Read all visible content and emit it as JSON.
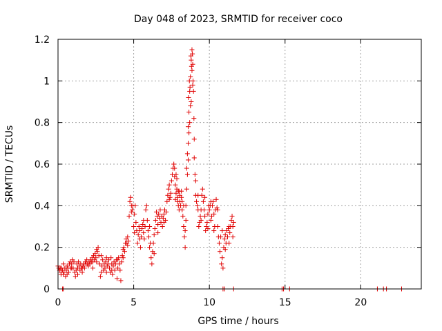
{
  "chart_data": {
    "type": "scatter",
    "title": "Day 048 of 2023, SRMTID for receiver coco",
    "xlabel": "GPS time / hours",
    "ylabel": "SRMTID / TECUs",
    "xlim": [
      0,
      24
    ],
    "ylim": [
      0,
      1.2
    ],
    "xticks": [
      0,
      5,
      10,
      15,
      20
    ],
    "xtick_labels": [
      "0",
      "5",
      "10",
      "15",
      "20"
    ],
    "yticks": [
      0,
      0.2,
      0.4,
      0.6,
      0.8,
      1.0,
      1.2
    ],
    "ytick_labels": [
      "0",
      "0.2",
      "0.4",
      "0.6",
      "0.8",
      "1",
      "1.2"
    ],
    "grid": true,
    "marker": "+",
    "color": "#e00000",
    "series": [
      {
        "name": "SRMTID",
        "points": [
          [
            0.0,
            0.11
          ],
          [
            0.05,
            0.1
          ],
          [
            0.1,
            0.09
          ],
          [
            0.15,
            0.1
          ],
          [
            0.2,
            0.08
          ],
          [
            0.25,
            0.1
          ],
          [
            0.3,
            0.09
          ],
          [
            0.35,
            0.07
          ],
          [
            0.4,
            0.08
          ],
          [
            0.45,
            0.1
          ],
          [
            0.5,
            0.06
          ],
          [
            0.55,
            0.09
          ],
          [
            0.6,
            0.11
          ],
          [
            0.65,
            0.1
          ],
          [
            0.7,
            0.08
          ],
          [
            0.75,
            0.12
          ],
          [
            0.8,
            0.13
          ],
          [
            0.85,
            0.1
          ],
          [
            0.9,
            0.12
          ],
          [
            0.95,
            0.14
          ],
          [
            1.0,
            0.1
          ],
          [
            1.05,
            0.13
          ],
          [
            1.1,
            0.08
          ],
          [
            1.15,
            0.06
          ],
          [
            1.2,
            0.09
          ],
          [
            1.25,
            0.12
          ],
          [
            1.3,
            0.1
          ],
          [
            1.35,
            0.13
          ],
          [
            1.4,
            0.11
          ],
          [
            1.45,
            0.09
          ],
          [
            1.5,
            0.12
          ],
          [
            1.55,
            0.1
          ],
          [
            1.6,
            0.08
          ],
          [
            1.65,
            0.11
          ],
          [
            1.7,
            0.12
          ],
          [
            1.75,
            0.1
          ],
          [
            1.8,
            0.13
          ],
          [
            1.85,
            0.12
          ],
          [
            1.9,
            0.14
          ],
          [
            1.95,
            0.12
          ],
          [
            2.0,
            0.11
          ],
          [
            2.05,
            0.13
          ],
          [
            2.1,
            0.12
          ],
          [
            2.15,
            0.14
          ],
          [
            2.2,
            0.13
          ],
          [
            2.25,
            0.15
          ],
          [
            2.3,
            0.13
          ],
          [
            2.35,
            0.16
          ],
          [
            2.4,
            0.14
          ],
          [
            2.45,
            0.17
          ],
          [
            2.5,
            0.15
          ],
          [
            2.55,
            0.13
          ],
          [
            2.6,
            0.18
          ],
          [
            2.65,
            0.2
          ],
          [
            2.7,
            0.16
          ],
          [
            2.75,
            0.12
          ],
          [
            2.8,
            0.06
          ],
          [
            2.85,
            0.08
          ],
          [
            2.9,
            0.11
          ],
          [
            2.95,
            0.14
          ],
          [
            3.0,
            0.09
          ],
          [
            3.05,
            0.12
          ],
          [
            3.1,
            0.1
          ],
          [
            3.15,
            0.13
          ],
          [
            3.2,
            0.08
          ],
          [
            3.25,
            0.11
          ],
          [
            3.3,
            0.12
          ],
          [
            3.35,
            0.14
          ],
          [
            3.4,
            0.1
          ],
          [
            3.45,
            0.08
          ],
          [
            3.5,
            0.15
          ],
          [
            3.55,
            0.12
          ],
          [
            3.6,
            0.07
          ],
          [
            3.65,
            0.11
          ],
          [
            3.7,
            0.13
          ],
          [
            3.75,
            0.09
          ],
          [
            3.8,
            0.12
          ],
          [
            3.85,
            0.14
          ],
          [
            3.9,
            0.05
          ],
          [
            3.95,
            0.1
          ],
          [
            4.0,
            0.15
          ],
          [
            4.05,
            0.12
          ],
          [
            4.1,
            0.09
          ],
          [
            4.15,
            0.04
          ],
          [
            4.2,
            0.13
          ],
          [
            4.25,
            0.16
          ],
          [
            4.3,
            0.15
          ],
          [
            4.35,
            0.2
          ],
          [
            4.4,
            0.18
          ],
          [
            4.45,
            0.22
          ],
          [
            4.5,
            0.24
          ],
          [
            4.55,
            0.22
          ],
          [
            4.6,
            0.25
          ],
          [
            4.65,
            0.23
          ],
          [
            4.7,
            0.35
          ],
          [
            4.75,
            0.42
          ],
          [
            4.8,
            0.44
          ],
          [
            4.85,
            0.4
          ],
          [
            4.9,
            0.38
          ],
          [
            4.95,
            0.4
          ],
          [
            5.0,
            0.3
          ],
          [
            5.05,
            0.36
          ],
          [
            5.1,
            0.4
          ],
          [
            5.15,
            0.32
          ],
          [
            5.2,
            0.28
          ],
          [
            5.25,
            0.22
          ],
          [
            5.3,
            0.26
          ],
          [
            5.35,
            0.3
          ],
          [
            5.4,
            0.28
          ],
          [
            5.45,
            0.2
          ],
          [
            5.5,
            0.25
          ],
          [
            5.55,
            0.29
          ],
          [
            5.6,
            0.31
          ],
          [
            5.65,
            0.27
          ],
          [
            5.7,
            0.24
          ],
          [
            5.75,
            0.3
          ],
          [
            5.8,
            0.38
          ],
          [
            5.85,
            0.4
          ],
          [
            5.9,
            0.33
          ],
          [
            5.95,
            0.28
          ],
          [
            6.0,
            0.25
          ],
          [
            6.05,
            0.3
          ],
          [
            6.1,
            0.22
          ],
          [
            6.15,
            0.15
          ],
          [
            6.2,
            0.12
          ],
          [
            6.25,
            0.18
          ],
          [
            6.3,
            0.22
          ],
          [
            6.35,
            0.26
          ],
          [
            6.4,
            0.29
          ],
          [
            6.45,
            0.33
          ],
          [
            6.5,
            0.37
          ],
          [
            6.55,
            0.35
          ],
          [
            6.6,
            0.31
          ],
          [
            6.65,
            0.36
          ],
          [
            6.7,
            0.34
          ],
          [
            6.75,
            0.38
          ],
          [
            6.8,
            0.32
          ],
          [
            6.85,
            0.35
          ],
          [
            6.9,
            0.3
          ],
          [
            6.95,
            0.34
          ],
          [
            7.0,
            0.36
          ],
          [
            7.05,
            0.38
          ],
          [
            7.1,
            0.33
          ],
          [
            7.15,
            0.37
          ],
          [
            7.2,
            0.42
          ],
          [
            7.25,
            0.45
          ],
          [
            7.3,
            0.48
          ],
          [
            7.35,
            0.5
          ],
          [
            7.4,
            0.44
          ],
          [
            7.45,
            0.46
          ],
          [
            7.5,
            0.52
          ],
          [
            7.55,
            0.55
          ],
          [
            7.6,
            0.58
          ],
          [
            7.65,
            0.6
          ],
          [
            7.7,
            0.54
          ],
          [
            7.75,
            0.5
          ],
          [
            7.8,
            0.46
          ],
          [
            7.85,
            0.48
          ],
          [
            7.9,
            0.42
          ],
          [
            7.95,
            0.4
          ],
          [
            8.0,
            0.38
          ],
          [
            8.05,
            0.45
          ],
          [
            8.1,
            0.4
          ],
          [
            8.15,
            0.44
          ],
          [
            8.2,
            0.42
          ],
          [
            8.25,
            0.35
          ],
          [
            8.3,
            0.3
          ],
          [
            8.35,
            0.25
          ],
          [
            8.4,
            0.2
          ],
          [
            8.45,
            0.33
          ],
          [
            8.5,
            0.48
          ],
          [
            8.55,
            0.55
          ],
          [
            8.6,
            0.7
          ],
          [
            8.65,
            0.85
          ],
          [
            8.7,
            0.95
          ],
          [
            8.75,
            1.02
          ],
          [
            8.8,
            1.1
          ],
          [
            8.85,
            1.15
          ],
          [
            8.9,
            1.08
          ],
          [
            8.95,
            0.95
          ],
          [
            9.0,
            0.72
          ],
          [
            9.05,
            0.55
          ],
          [
            9.1,
            0.45
          ],
          [
            9.15,
            0.42
          ],
          [
            9.2,
            0.4
          ],
          [
            9.25,
            0.38
          ],
          [
            9.3,
            0.3
          ],
          [
            9.35,
            0.32
          ],
          [
            9.4,
            0.35
          ],
          [
            9.45,
            0.38
          ],
          [
            9.5,
            0.45
          ],
          [
            9.55,
            0.48
          ],
          [
            9.6,
            0.42
          ],
          [
            9.65,
            0.38
          ],
          [
            9.7,
            0.35
          ],
          [
            9.75,
            0.28
          ],
          [
            9.8,
            0.3
          ],
          [
            9.85,
            0.32
          ],
          [
            9.9,
            0.36
          ],
          [
            9.95,
            0.4
          ],
          [
            10.0,
            0.38
          ],
          [
            10.05,
            0.4
          ],
          [
            10.1,
            0.33
          ],
          [
            10.15,
            0.35
          ],
          [
            10.2,
            0.4
          ],
          [
            10.25,
            0.42
          ],
          [
            10.3,
            0.36
          ],
          [
            10.35,
            0.3
          ],
          [
            10.4,
            0.38
          ],
          [
            10.45,
            0.43
          ],
          [
            10.5,
            0.39
          ],
          [
            10.55,
            0.3
          ],
          [
            10.6,
            0.25
          ],
          [
            10.65,
            0.22
          ],
          [
            10.7,
            0.18
          ],
          [
            10.75,
            0.25
          ],
          [
            10.8,
            0.12
          ],
          [
            10.85,
            0.15
          ],
          [
            10.9,
            0.1
          ],
          [
            10.95,
            0.2
          ],
          [
            11.0,
            0.24
          ],
          [
            11.05,
            0.26
          ],
          [
            11.1,
            0.22
          ],
          [
            11.15,
            0.28
          ],
          [
            11.2,
            0.25
          ],
          [
            11.25,
            0.29
          ],
          [
            11.3,
            0.22
          ],
          [
            11.35,
            0.27
          ],
          [
            11.4,
            0.3
          ],
          [
            11.45,
            0.33
          ],
          [
            11.5,
            0.35
          ],
          [
            11.55,
            0.3
          ],
          [
            11.6,
            0.32
          ],
          [
            0.2,
            0.07
          ],
          [
            0.35,
            0.12
          ],
          [
            0.6,
            0.07
          ],
          [
            0.9,
            0.1
          ],
          [
            1.3,
            0.07
          ],
          [
            1.6,
            0.1
          ],
          [
            2.3,
            0.1
          ],
          [
            2.55,
            0.19
          ],
          [
            2.85,
            0.16
          ],
          [
            3.2,
            0.15
          ],
          [
            3.55,
            0.09
          ],
          [
            3.95,
            0.14
          ],
          [
            4.3,
            0.19
          ],
          [
            4.6,
            0.21
          ],
          [
            4.85,
            0.37
          ],
          [
            5.05,
            0.27
          ],
          [
            5.4,
            0.24
          ],
          [
            5.65,
            0.33
          ],
          [
            6.05,
            0.2
          ],
          [
            6.35,
            0.17
          ],
          [
            6.6,
            0.27
          ],
          [
            7.0,
            0.32
          ],
          [
            7.35,
            0.43
          ],
          [
            7.7,
            0.58
          ],
          [
            8.0,
            0.47
          ],
          [
            8.3,
            0.4
          ],
          [
            8.6,
            0.62
          ],
          [
            8.7,
            0.8
          ],
          [
            8.8,
            0.9
          ],
          [
            8.85,
            1.05
          ],
          [
            8.9,
            0.98
          ],
          [
            8.75,
            0.88
          ],
          [
            8.65,
            0.75
          ],
          [
            8.55,
            0.65
          ],
          [
            9.0,
            0.63
          ],
          [
            9.1,
            0.52
          ],
          [
            9.25,
            0.45
          ],
          [
            9.45,
            0.33
          ],
          [
            9.7,
            0.44
          ],
          [
            9.9,
            0.29
          ],
          [
            10.1,
            0.42
          ],
          [
            10.3,
            0.28
          ],
          [
            10.55,
            0.38
          ],
          [
            10.85,
            0.28
          ],
          [
            11.05,
            0.19
          ],
          [
            11.3,
            0.3
          ],
          [
            11.55,
            0.25
          ],
          [
            7.8,
            0.55
          ],
          [
            7.75,
            0.43
          ],
          [
            7.85,
            0.53
          ],
          [
            7.9,
            0.44
          ],
          [
            7.95,
            0.47
          ],
          [
            8.05,
            0.42
          ],
          [
            8.15,
            0.47
          ],
          [
            8.2,
            0.38
          ],
          [
            8.4,
            0.28
          ],
          [
            8.45,
            0.4
          ],
          [
            8.5,
            0.58
          ],
          [
            8.6,
            0.78
          ],
          [
            8.62,
            0.92
          ],
          [
            8.68,
            1.0
          ],
          [
            8.72,
            0.97
          ],
          [
            8.78,
            1.12
          ],
          [
            8.82,
            1.07
          ],
          [
            8.88,
            1.13
          ],
          [
            8.92,
            1.0
          ],
          [
            8.98,
            0.82
          ],
          [
            0.3,
            0.0
          ],
          [
            0.35,
            0.0
          ],
          [
            10.9,
            0.0
          ],
          [
            11.0,
            0.0
          ],
          [
            11.6,
            0.0
          ],
          [
            14.8,
            0.0
          ],
          [
            14.9,
            0.0
          ],
          [
            15.3,
            0.0
          ],
          [
            21.1,
            0.0
          ],
          [
            21.5,
            0.0
          ],
          [
            21.7,
            0.0
          ],
          [
            22.7,
            0.0
          ]
        ]
      }
    ]
  }
}
